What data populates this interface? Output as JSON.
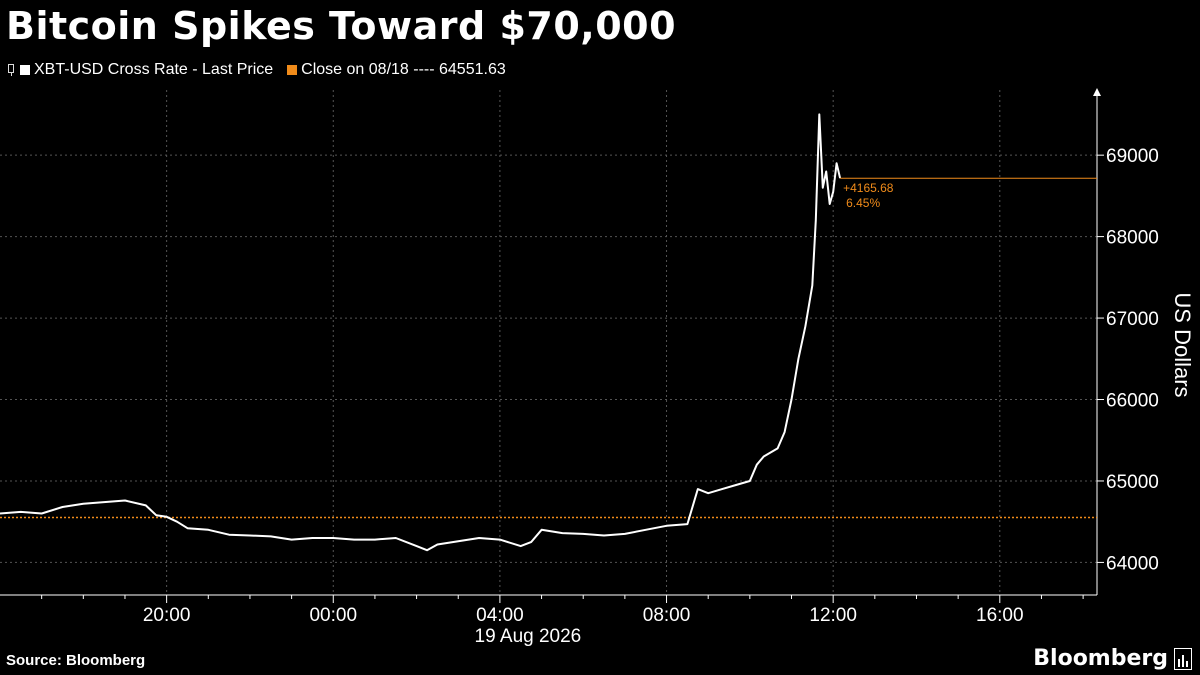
{
  "header": {
    "title": "Bitcoin Spikes Toward $70,000"
  },
  "legend": {
    "series_label": "XBT-USD Cross Rate - Last Price",
    "reference_label": "Close on 08/18 ---- 64551.63"
  },
  "footer": {
    "source": "Source: Bloomberg",
    "brand": "Bloomberg"
  },
  "colors": {
    "background": "#000000",
    "line": "#ffffff",
    "reference": "#f08b1a",
    "grid": "#555555"
  },
  "chart_data": {
    "type": "line",
    "ylabel": "US Dollars",
    "xlabel": "19 Aug 2026",
    "ylim": [
      63600,
      69800
    ],
    "xlim": [
      "08/18 16:00",
      "08/19 18:20"
    ],
    "y_ticks": [
      64000,
      65000,
      66000,
      67000,
      68000,
      69000
    ],
    "x_ticks": [
      "20:00",
      "00:00",
      "04:00",
      "08:00",
      "12:00",
      "16:00"
    ],
    "grid": true,
    "reference_line": {
      "label": "Close on 08/18",
      "value": 64551.63
    },
    "annotation": {
      "change": "+4165.68",
      "percent": "6.45%"
    },
    "series": [
      {
        "name": "XBT-USD Cross Rate - Last Price",
        "x": [
          "08/18 16:00",
          "08/18 16:30",
          "08/18 17:00",
          "08/18 17:30",
          "08/18 18:00",
          "08/18 18:30",
          "08/18 19:00",
          "08/18 19:30",
          "08/18 19:45",
          "08/18 20:00",
          "08/18 20:15",
          "08/18 20:30",
          "08/18 21:00",
          "08/18 21:30",
          "08/18 22:00",
          "08/18 22:30",
          "08/18 23:00",
          "08/18 23:30",
          "08/19 00:00",
          "08/19 00:30",
          "08/19 01:00",
          "08/19 01:30",
          "08/19 02:00",
          "08/19 02:15",
          "08/19 02:30",
          "08/19 03:00",
          "08/19 03:30",
          "08/19 04:00",
          "08/19 04:30",
          "08/19 04:45",
          "08/19 05:00",
          "08/19 05:30",
          "08/19 06:00",
          "08/19 06:30",
          "08/19 07:00",
          "08/19 07:30",
          "08/19 08:00",
          "08/19 08:30",
          "08/19 08:45",
          "08/19 09:00",
          "08/19 09:20",
          "08/19 09:40",
          "08/19 10:00",
          "08/19 10:10",
          "08/19 10:20",
          "08/19 10:40",
          "08/19 10:50",
          "08/19 11:00",
          "08/19 11:10",
          "08/19 11:20",
          "08/19 11:30",
          "08/19 11:35",
          "08/19 11:40",
          "08/19 11:45",
          "08/19 11:50",
          "08/19 11:55",
          "08/19 12:00",
          "08/19 12:05",
          "08/19 12:10"
        ],
        "y": [
          64600,
          64620,
          64600,
          64680,
          64720,
          64740,
          64760,
          64700,
          64580,
          64560,
          64500,
          64420,
          64400,
          64340,
          64330,
          64320,
          64280,
          64300,
          64300,
          64280,
          64280,
          64300,
          64200,
          64150,
          64220,
          64260,
          64300,
          64280,
          64200,
          64250,
          64400,
          64360,
          64350,
          64330,
          64350,
          64400,
          64450,
          64470,
          64900,
          64850,
          64900,
          64950,
          65000,
          65200,
          65300,
          65400,
          65600,
          66000,
          66500,
          66900,
          67400,
          68200,
          69500,
          68600,
          68800,
          68400,
          68550,
          68900,
          68717
        ]
      }
    ]
  }
}
